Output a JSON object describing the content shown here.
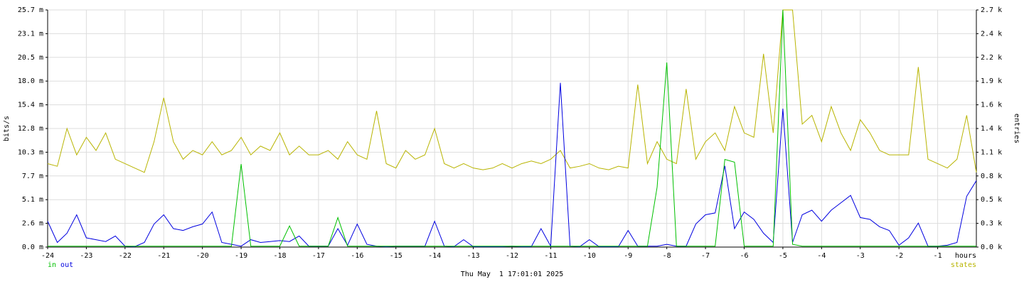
{
  "chart_data": {
    "type": "line",
    "x_label": "hours",
    "y_label": "bits/s",
    "y2_label": "entries",
    "footer": "Thu May  1 17:01:01 2025",
    "xlim": [
      -24,
      0
    ],
    "xticks": [
      -24,
      -23,
      -22,
      -21,
      -20,
      -19,
      -18,
      -17,
      -16,
      -15,
      -14,
      -13,
      -12,
      -11,
      -10,
      -9,
      -8,
      -7,
      -6,
      -5,
      -4,
      -3,
      -2,
      -1
    ],
    "ylim": [
      0,
      25.7
    ],
    "yticks": [
      {
        "value": 0,
        "label": "0.0 m"
      },
      {
        "value": 2.57,
        "label": "2.6 m"
      },
      {
        "value": 5.14,
        "label": "5.1 m"
      },
      {
        "value": 7.71,
        "label": "7.7 m"
      },
      {
        "value": 10.28,
        "label": "10.3 m"
      },
      {
        "value": 12.85,
        "label": "12.8 m"
      },
      {
        "value": 15.42,
        "label": "15.4 m"
      },
      {
        "value": 17.99,
        "label": "18.0 m"
      },
      {
        "value": 20.56,
        "label": "20.5 m"
      },
      {
        "value": 23.13,
        "label": "23.1 m"
      },
      {
        "value": 25.7,
        "label": "25.7 m"
      }
    ],
    "y2lim": [
      0,
      2.7
    ],
    "y2ticks": [
      {
        "value": 0,
        "label": "0.0 k"
      },
      {
        "value": 0.27,
        "label": "0.3 k"
      },
      {
        "value": 0.54,
        "label": "0.5 k"
      },
      {
        "value": 0.81,
        "label": "0.8 k"
      },
      {
        "value": 1.08,
        "label": "1.1 k"
      },
      {
        "value": 1.35,
        "label": "1.4 k"
      },
      {
        "value": 1.62,
        "label": "1.6 k"
      },
      {
        "value": 1.89,
        "label": "1.9 k"
      },
      {
        "value": 2.16,
        "label": "2.2 k"
      },
      {
        "value": 2.43,
        "label": "2.4 k"
      },
      {
        "value": 2.7,
        "label": "2.7 k"
      }
    ],
    "grid": true,
    "x": [
      -24,
      -23.75,
      -23.5,
      -23.25,
      -23,
      -22.75,
      -22.5,
      -22.25,
      -22,
      -21.75,
      -21.5,
      -21.25,
      -21,
      -20.75,
      -20.5,
      -20.25,
      -20,
      -19.75,
      -19.5,
      -19.25,
      -19,
      -18.75,
      -18.5,
      -18.25,
      -18,
      -17.75,
      -17.5,
      -17.25,
      -17,
      -16.75,
      -16.5,
      -16.25,
      -16,
      -15.75,
      -15.5,
      -15.25,
      -15,
      -14.75,
      -14.5,
      -14.25,
      -14,
      -13.75,
      -13.5,
      -13.25,
      -13,
      -12.75,
      -12.5,
      -12.25,
      -12,
      -11.75,
      -11.5,
      -11.25,
      -11,
      -10.75,
      -10.5,
      -10.25,
      -10,
      -9.75,
      -9.5,
      -9.25,
      -9,
      -8.75,
      -8.5,
      -8.25,
      -8,
      -7.75,
      -7.5,
      -7.25,
      -7,
      -6.75,
      -6.5,
      -6.25,
      -6,
      -5.75,
      -5.5,
      -5.25,
      -5,
      -4.75,
      -4.5,
      -4.25,
      -4,
      -3.75,
      -3.5,
      -3.25,
      -3,
      -2.75,
      -2.5,
      -2.25,
      -2,
      -1.75,
      -1.5,
      -1.25,
      -1,
      -0.75,
      -0.5,
      -0.25,
      0
    ],
    "series": [
      {
        "name": "states",
        "color": "#b8b400",
        "axis": "y2",
        "legend": "right",
        "values": [
          0.95,
          0.92,
          1.35,
          1.05,
          1.25,
          1.1,
          1.3,
          1.0,
          0.95,
          0.9,
          0.85,
          1.2,
          1.7,
          1.2,
          1.0,
          1.1,
          1.05,
          1.2,
          1.05,
          1.1,
          1.25,
          1.05,
          1.15,
          1.1,
          1.3,
          1.05,
          1.15,
          1.05,
          1.05,
          1.1,
          1.0,
          1.2,
          1.05,
          1.0,
          1.55,
          0.95,
          0.9,
          1.1,
          1.0,
          1.05,
          1.35,
          0.95,
          0.9,
          0.95,
          0.9,
          0.88,
          0.9,
          0.95,
          0.9,
          0.95,
          0.98,
          0.95,
          1.0,
          1.1,
          0.9,
          0.92,
          0.95,
          0.9,
          0.88,
          0.92,
          0.9,
          1.85,
          0.95,
          1.2,
          1.0,
          0.95,
          1.8,
          1.0,
          1.2,
          1.3,
          1.1,
          1.6,
          1.3,
          1.25,
          2.2,
          1.3,
          2.7,
          2.7,
          1.4,
          1.5,
          1.2,
          1.6,
          1.3,
          1.1,
          1.45,
          1.3,
          1.1,
          1.05,
          1.05,
          1.05,
          2.05,
          1.0,
          0.95,
          0.9,
          1.0,
          1.5,
          0.85
        ]
      },
      {
        "name": "out",
        "color": "#0000e0",
        "legend": "left",
        "values": [
          2.8,
          0.5,
          1.5,
          3.5,
          1.0,
          0.8,
          0.6,
          1.2,
          0.1,
          0.05,
          0.5,
          2.5,
          3.5,
          2.0,
          1.8,
          2.2,
          2.5,
          3.8,
          0.5,
          0.3,
          0.1,
          0.8,
          0.5,
          0.6,
          0.7,
          0.6,
          1.2,
          0.1,
          0.1,
          0.1,
          2.0,
          0.2,
          2.5,
          0.3,
          0.1,
          0.05,
          0.1,
          0.1,
          0.1,
          0.1,
          2.8,
          0.1,
          0.05,
          0.8,
          0.05,
          0.05,
          0.05,
          0.05,
          0.1,
          0.05,
          0.05,
          2.0,
          0.1,
          17.8,
          0.1,
          0.05,
          0.8,
          0.05,
          0.05,
          0.05,
          1.8,
          0.1,
          0.1,
          0.1,
          0.3,
          0.1,
          0.1,
          2.5,
          3.5,
          3.7,
          8.8,
          2.0,
          3.8,
          3.0,
          1.5,
          0.5,
          15.0,
          0.5,
          3.5,
          4.0,
          2.8,
          4.0,
          4.8,
          5.6,
          3.2,
          3.0,
          2.2,
          1.8,
          0.2,
          1.0,
          2.6,
          0.1,
          0.1,
          0.2,
          0.5,
          5.5,
          7.2
        ]
      },
      {
        "name": "in",
        "color": "#00c000",
        "legend": "left",
        "values": [
          0.1,
          0.1,
          0.1,
          0.1,
          0.1,
          0.1,
          0.1,
          0.1,
          0.1,
          0.1,
          0.1,
          0.1,
          0.1,
          0.1,
          0.1,
          0.1,
          0.1,
          0.1,
          0.1,
          0.1,
          9.0,
          0.1,
          0.1,
          0.1,
          0.1,
          2.3,
          0.1,
          0.1,
          0.1,
          0.1,
          3.2,
          0.1,
          0.1,
          0.1,
          0.1,
          0.1,
          0.1,
          0.1,
          0.1,
          0.1,
          0.1,
          0.1,
          0.1,
          0.1,
          0.1,
          0.1,
          0.1,
          0.1,
          0.1,
          0.1,
          0.1,
          0.1,
          0.1,
          0.1,
          0.1,
          0.1,
          0.1,
          0.1,
          0.1,
          0.1,
          0.1,
          0.1,
          0.1,
          6.5,
          20.0,
          0.1,
          0.1,
          0.1,
          0.1,
          0.1,
          9.5,
          9.2,
          0.1,
          0.1,
          0.1,
          0.1,
          25.7,
          0.3,
          0.1,
          0.1,
          0.1,
          0.1,
          0.1,
          0.1,
          0.1,
          0.1,
          0.1,
          0.1,
          0.1,
          0.1,
          0.1,
          0.1,
          0.1,
          0.1,
          0.1,
          0.1,
          0.1
        ]
      }
    ]
  }
}
